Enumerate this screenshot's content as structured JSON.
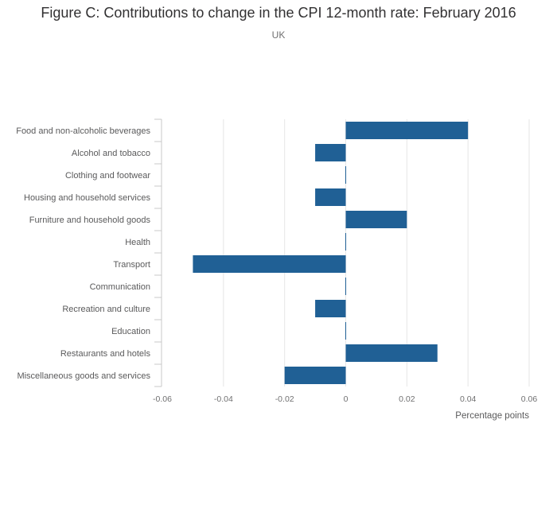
{
  "chart_data": {
    "type": "bar",
    "orientation": "horizontal",
    "title": "Figure C: Contributions to change in the CPI 12-month rate: February 2016",
    "subtitle": "UK",
    "xlabel": "Percentage points",
    "ylabel": "",
    "xlim": [
      -0.06,
      0.06
    ],
    "xticks": [
      -0.06,
      -0.04,
      -0.02,
      0,
      0.02,
      0.04,
      0.06
    ],
    "xtick_labels": [
      "-0.06",
      "-0.04",
      "-0.02",
      "0",
      "0.02",
      "0.04",
      "0.06"
    ],
    "grid": true,
    "bar_color": "#206095",
    "categories": [
      "Food and non-alcoholic beverages",
      "Alcohol and tobacco",
      "Clothing and footwear",
      "Housing and household services",
      "Furniture and household goods",
      "Health",
      "Transport",
      "Communication",
      "Recreation and culture",
      "Education",
      "Restaurants and hotels",
      "Miscellaneous goods and services"
    ],
    "values": [
      0.04,
      -0.01,
      0,
      -0.01,
      0.02,
      0,
      -0.05,
      0,
      -0.01,
      0,
      0.03,
      -0.02
    ]
  }
}
